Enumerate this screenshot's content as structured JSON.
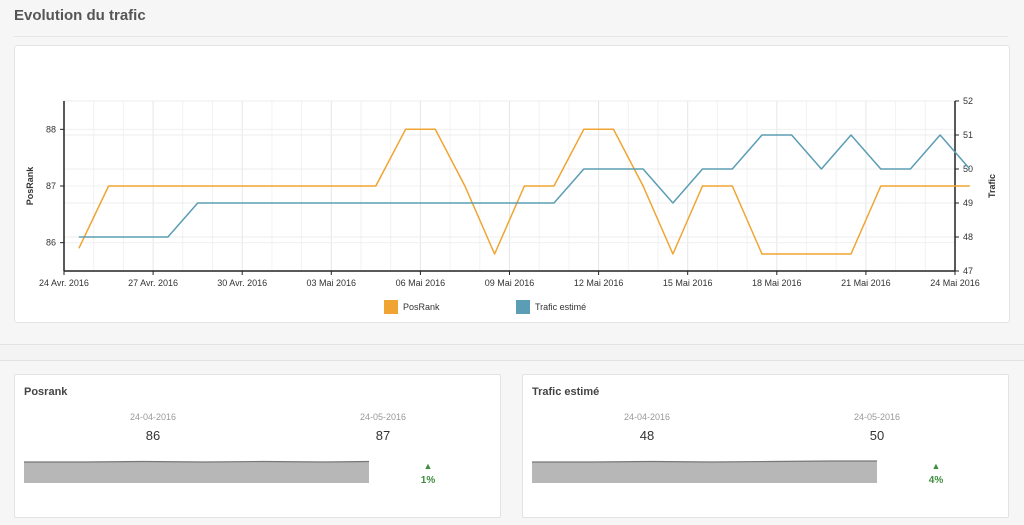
{
  "page": {
    "title": "Evolution du trafic"
  },
  "chart_data": {
    "type": "line",
    "x_ticks": [
      "24 Avr. 2016",
      "27 Avr. 2016",
      "30 Avr. 2016",
      "03 Mai 2016",
      "06 Mai 2016",
      "09 Mai 2016",
      "12 Mai 2016",
      "15 Mai 2016",
      "18 Mai 2016",
      "21 Mai 2016",
      "24 Mai 2016"
    ],
    "x_start": "2016-04-24",
    "y_left": {
      "label": "PosRank",
      "ticks": [
        86,
        87,
        88
      ],
      "range": [
        85.5,
        88.5
      ]
    },
    "y_right": {
      "label": "Trafic",
      "ticks": [
        47,
        48,
        49,
        50,
        51,
        52
      ],
      "range": [
        47,
        52
      ]
    },
    "grid": true,
    "legend_position": "bottom",
    "series": [
      {
        "name": "PosRank",
        "axis": "left",
        "color": "#f0a431",
        "x": [
          0.5,
          1.5,
          2.5,
          3.5,
          4.5,
          5.5,
          6.5,
          7.5,
          8.5,
          9.5,
          10.5,
          11.5,
          12.5,
          13.5,
          14.5,
          15.5,
          16.5,
          17.5,
          18.5,
          19.5,
          20.5,
          21.5,
          22.5,
          23.5,
          24.5,
          25.5,
          26.5,
          27.5,
          28.5,
          29.5,
          30.5
        ],
        "values": [
          85.9,
          87,
          87,
          87,
          87,
          87,
          87,
          87,
          87,
          87,
          87,
          88,
          88,
          87,
          85.8,
          87,
          87,
          88,
          88,
          87,
          85.8,
          87,
          87,
          85.8,
          85.8,
          85.8,
          85.8,
          87,
          87,
          87,
          87
        ]
      },
      {
        "name": "Trafic estimé",
        "axis": "right",
        "color": "#5b9db4",
        "x": [
          0.5,
          3.5,
          4.5,
          16.5,
          17.5,
          18.5,
          19.5,
          20.5,
          21.5,
          22.5,
          23.5,
          24.5,
          25.5,
          26.5,
          27.5,
          28.5,
          29.5,
          30.5
        ],
        "values": [
          48,
          48,
          49,
          49,
          50,
          50,
          50,
          49,
          50,
          50,
          51,
          51,
          50,
          51,
          50,
          50,
          51,
          50
        ]
      }
    ]
  },
  "cards": [
    {
      "title": "Posrank",
      "start_date": "24-04-2016",
      "end_date": "24-05-2016",
      "start_value": "86",
      "end_value": "87",
      "change": "1%",
      "trend_arrow": "▲"
    },
    {
      "title": "Trafic estimé",
      "start_date": "24-04-2016",
      "end_date": "24-05-2016",
      "start_value": "48",
      "end_value": "50",
      "change": "4%",
      "trend_arrow": "▲"
    }
  ]
}
